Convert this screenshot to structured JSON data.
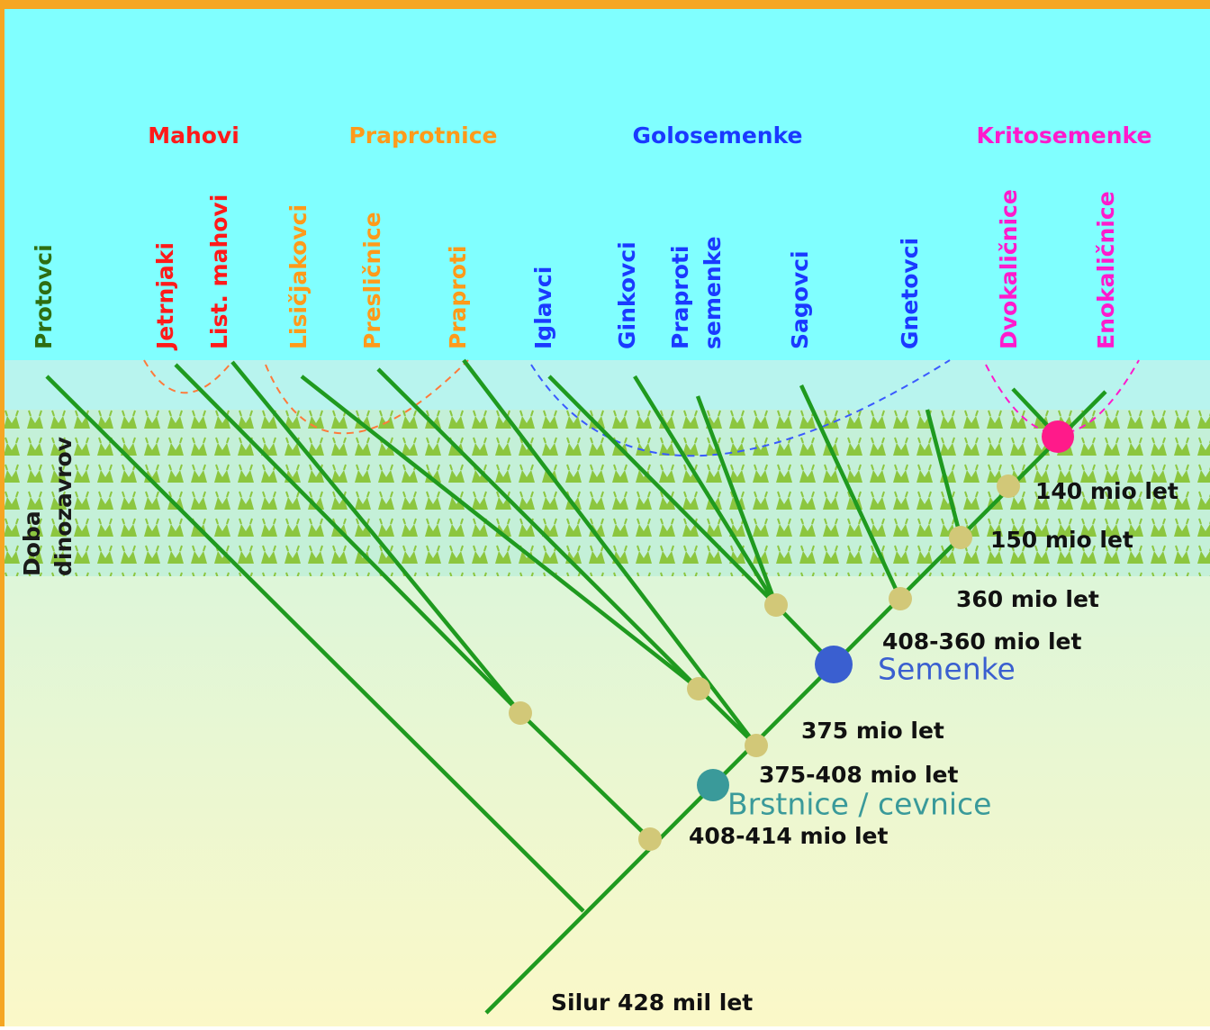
{
  "groups": [
    {
      "label": "Mahovi",
      "color": "#ff1a1a"
    },
    {
      "label": "Praprotnice",
      "color": "#ff9a1a"
    },
    {
      "label": "Golosemenke",
      "color": "#1a3aff"
    },
    {
      "label": "Kritosemenke",
      "color": "#ff1acc"
    }
  ],
  "taxa": [
    {
      "lines": [
        "Protovci"
      ],
      "color": "#2e6e12"
    },
    {
      "lines": [
        "Jetrnjaki"
      ],
      "color": "#ff1a1a"
    },
    {
      "lines": [
        "List. mahovi"
      ],
      "color": "#ff1a1a"
    },
    {
      "lines": [
        "Lisičjakovci"
      ],
      "color": "#ff9a1a"
    },
    {
      "lines": [
        "Presličnice"
      ],
      "color": "#ff9a1a"
    },
    {
      "lines": [
        "Praproti"
      ],
      "color": "#ff9a1a"
    },
    {
      "lines": [
        "Iglavci"
      ],
      "color": "#1a3aff"
    },
    {
      "lines": [
        "Ginkovci"
      ],
      "color": "#1a3aff"
    },
    {
      "lines": [
        "Praproti",
        "semenke"
      ],
      "color": "#1a3aff"
    },
    {
      "lines": [
        "Sagovci"
      ],
      "color": "#1a3aff"
    },
    {
      "lines": [
        "Gnetovci"
      ],
      "color": "#1a3aff"
    },
    {
      "lines": [
        "Dvokaličnice"
      ],
      "color": "#ff1acc"
    },
    {
      "lines": [
        "Enokaličnice"
      ],
      "color": "#ff1acc"
    }
  ],
  "era": [
    "Doba",
    "dinozavrov"
  ],
  "ages": [
    "140 mio let",
    "150 mio let",
    "360 mio let",
    "408-360 mio let",
    "375 mio let",
    "375-408 mio let",
    "408-414 mio let",
    "Silur 428 mil let"
  ],
  "clades": [
    {
      "label": "Semenke",
      "color": "#3a5fd0"
    },
    {
      "label": "Brstnice / cevnice",
      "color": "#3a9a9a"
    }
  ]
}
